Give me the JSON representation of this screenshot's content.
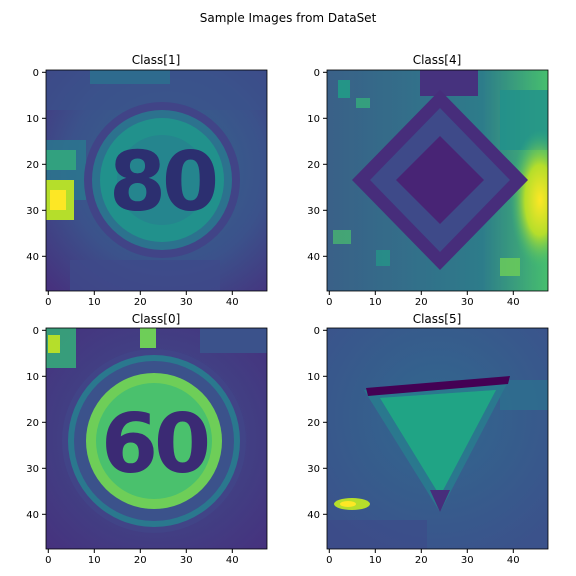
{
  "figure_title": "Sample Images from DataSet",
  "chart_data": [
    {
      "type": "heatmap",
      "title": "Class[1]",
      "content": "speed-limit-80-sign",
      "sign_text": "80",
      "colormap": "viridis",
      "xlim": [
        0,
        48
      ],
      "ylim": [
        48,
        0
      ],
      "xticks": [
        0,
        10,
        20,
        30,
        40
      ],
      "yticks": [
        0,
        10,
        20,
        30,
        40
      ]
    },
    {
      "type": "heatmap",
      "title": "Class[4]",
      "content": "priority-road-diamond-sign",
      "colormap": "viridis",
      "xlim": [
        0,
        48
      ],
      "ylim": [
        48,
        0
      ],
      "xticks": [
        0,
        10,
        20,
        30,
        40
      ],
      "yticks": [
        0,
        10,
        20,
        30,
        40
      ]
    },
    {
      "type": "heatmap",
      "title": "Class[0]",
      "content": "speed-limit-60-sign",
      "sign_text": "60",
      "colormap": "viridis",
      "xlim": [
        0,
        48
      ],
      "ylim": [
        48,
        0
      ],
      "xticks": [
        0,
        10,
        20,
        30,
        40
      ],
      "yticks": [
        0,
        10,
        20,
        30,
        40
      ]
    },
    {
      "type": "heatmap",
      "title": "Class[5]",
      "content": "yield-triangle-sign",
      "colormap": "viridis",
      "xlim": [
        0,
        48
      ],
      "ylim": [
        48,
        0
      ],
      "xticks": [
        0,
        10,
        20,
        30,
        40
      ],
      "yticks": [
        0,
        10,
        20,
        30,
        40
      ]
    }
  ],
  "colors": {
    "dark_purple": "#440154",
    "indigo": "#46327e",
    "blue": "#365c8d",
    "teal": "#277f8e",
    "green_teal": "#1fa187",
    "green": "#4ac16d",
    "lime": "#a0da39",
    "yellow": "#fde725"
  }
}
